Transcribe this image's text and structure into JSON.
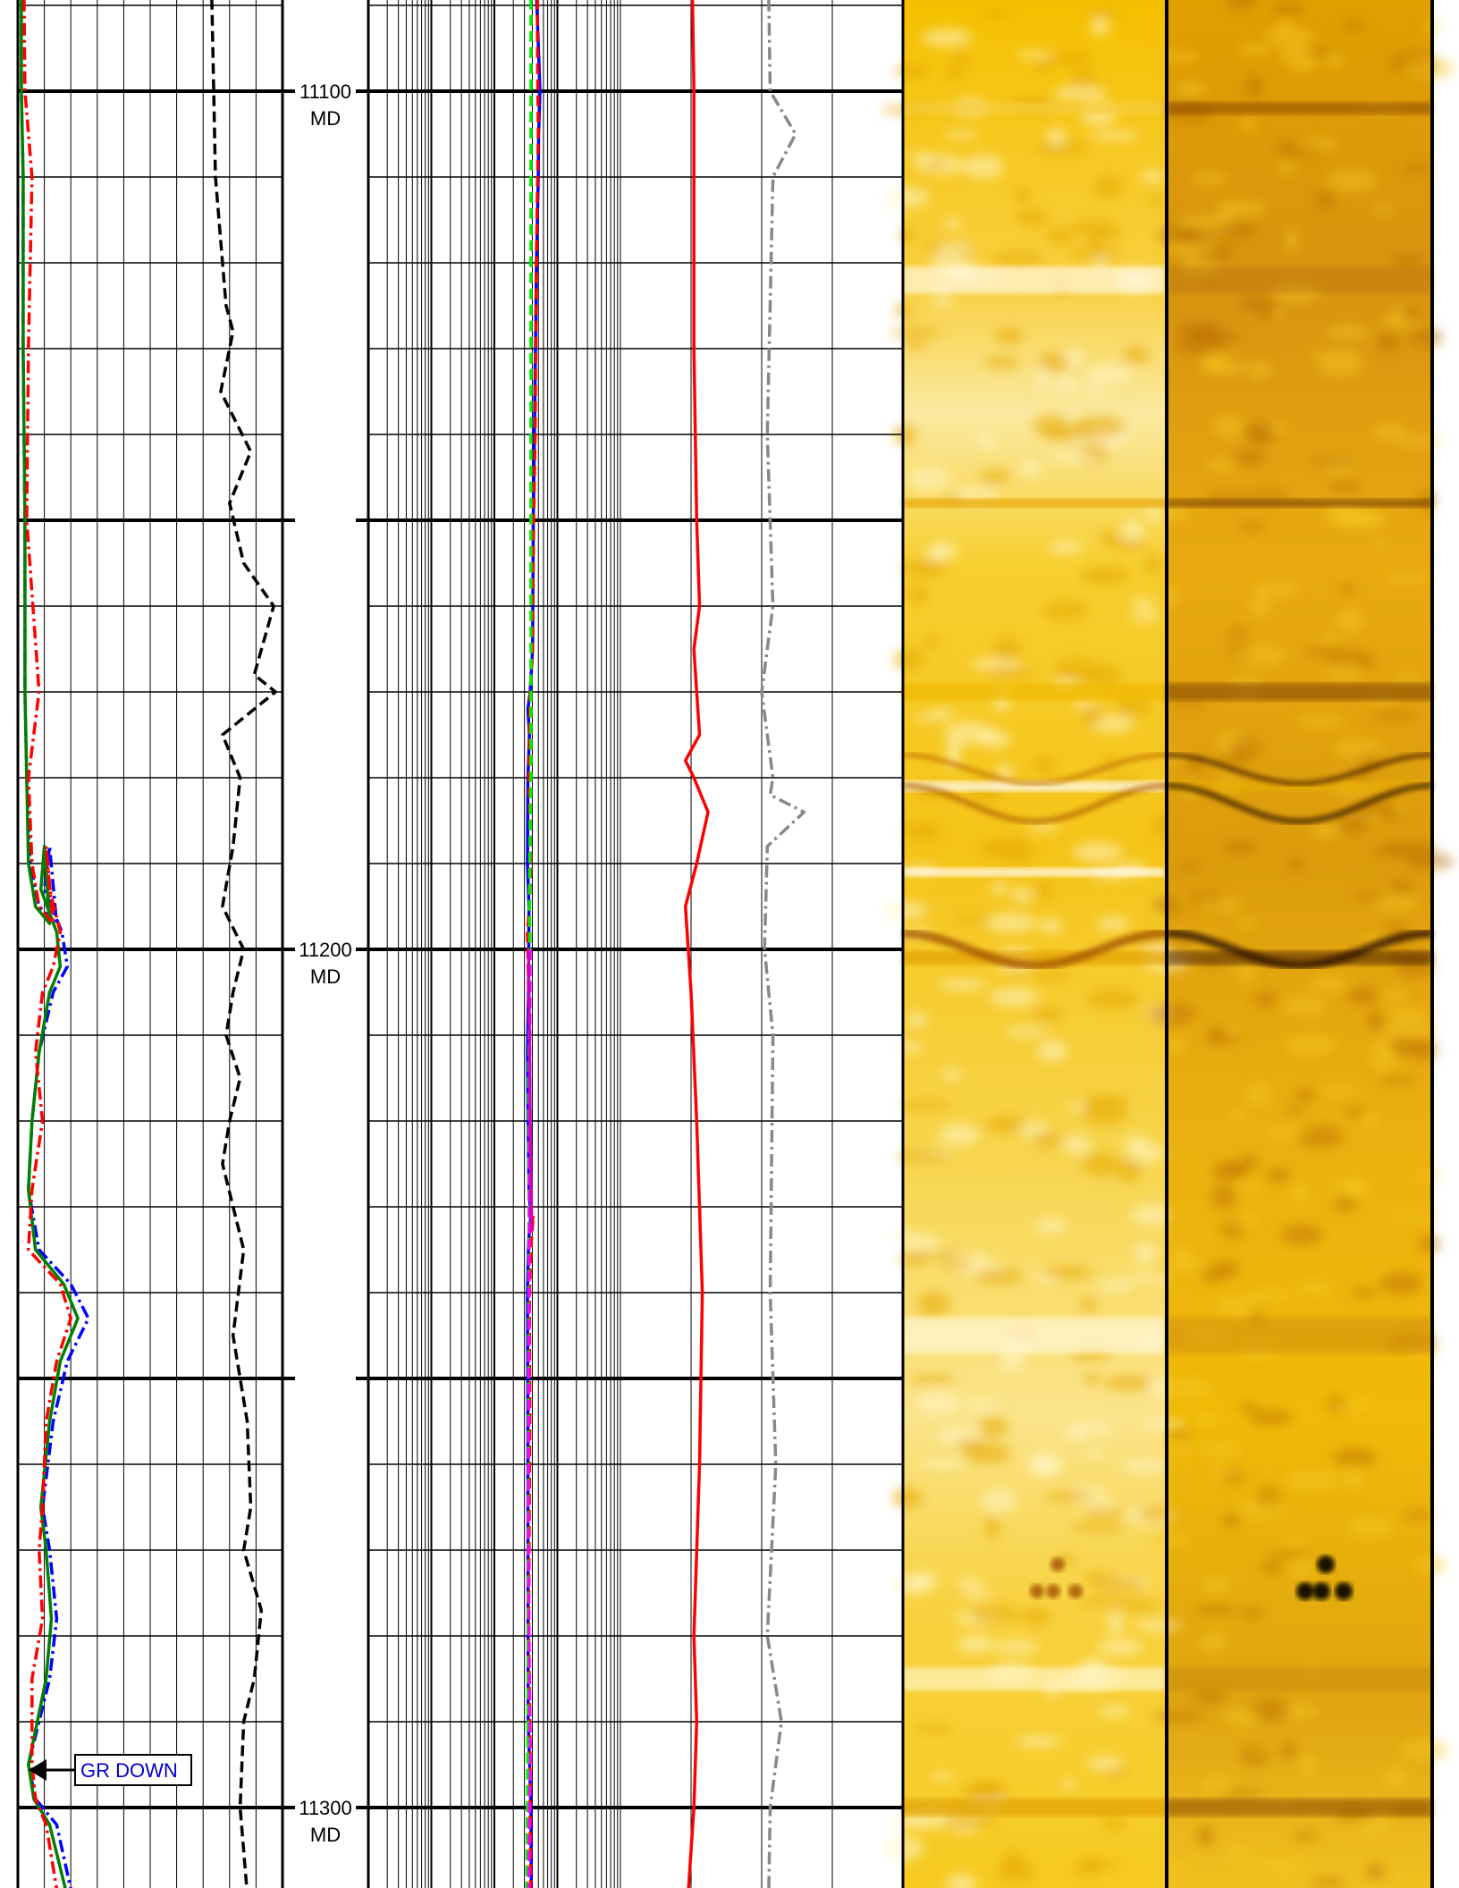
{
  "chart_data": {
    "type": "line",
    "title": "",
    "depth_axis": {
      "range_md": [
        11078,
        11320
      ],
      "ticks": [
        {
          "depth": 11100,
          "label": "11100",
          "unit_label": "MD"
        },
        {
          "depth": 11200,
          "label": "11200",
          "unit_label": "MD"
        },
        {
          "depth": 11300,
          "label": "11300",
          "unit_label": "MD"
        }
      ]
    },
    "track1": {
      "xlim": [
        0,
        150
      ],
      "series": [
        {
          "id": "gr-down",
          "color": "#0000ff",
          "style": "dashdot",
          "x": [
            2,
            2,
            3,
            3,
            4,
            4,
            5,
            7,
            12,
            22,
            18,
            15,
            25,
            28,
            20,
            12,
            8,
            6,
            12,
            30,
            40,
            28,
            20,
            14,
            18,
            22,
            18,
            6,
            10,
            22,
            38
          ],
          "depth": [
            11078,
            11100,
            11110,
            11130,
            11150,
            11170,
            11180,
            11190,
            11195,
            11197,
            11188,
            11193,
            11198,
            11202,
            11205,
            11212,
            11220,
            11228,
            11235,
            11239,
            11243,
            11248,
            11255,
            11265,
            11270,
            11278,
            11285,
            11295,
            11299,
            11302,
            11317
          ]
        },
        {
          "id": "gr-green",
          "color": "#008000",
          "style": "solid",
          "x": [
            2,
            2,
            3,
            3,
            4,
            4,
            5,
            6,
            10,
            18,
            15,
            13,
            22,
            24,
            18,
            12,
            8,
            6,
            10,
            26,
            34,
            24,
            18,
            13,
            16,
            19,
            16,
            6,
            9,
            18,
            36
          ],
          "depth": [
            11078,
            11100,
            11110,
            11130,
            11150,
            11170,
            11180,
            11190,
            11195,
            11197,
            11188,
            11193,
            11198,
            11202,
            11205,
            11212,
            11220,
            11228,
            11235,
            11239,
            11243,
            11248,
            11255,
            11265,
            11270,
            11278,
            11285,
            11295,
            11299,
            11302,
            11317
          ]
        },
        {
          "id": "gr-red",
          "color": "#ff0000",
          "style": "dashdot",
          "x": [
            3,
            4,
            8,
            6,
            5,
            12,
            6,
            8,
            12,
            20,
            16,
            18,
            24,
            20,
            14,
            10,
            14,
            8,
            6,
            24,
            30,
            22,
            16,
            14,
            12,
            14,
            8,
            8,
            10,
            16,
            28
          ],
          "depth": [
            11078,
            11100,
            11110,
            11130,
            11150,
            11170,
            11180,
            11190,
            11195,
            11197,
            11188,
            11193,
            11198,
            11202,
            11205,
            11212,
            11220,
            11228,
            11235,
            11239,
            11243,
            11248,
            11255,
            11265,
            11270,
            11278,
            11285,
            11295,
            11299,
            11302,
            11317
          ]
        },
        {
          "id": "aux-black",
          "color": "#000000",
          "style": "dashed",
          "x": [
            108,
            110,
            112,
            116,
            118,
            122,
            115,
            132,
            120,
            128,
            145,
            134,
            146,
            116,
            126,
            122,
            116,
            128,
            122,
            118,
            126,
            120,
            116,
            128,
            122,
            130,
            132,
            128,
            138,
            134,
            128,
            126,
            130,
            130
          ],
          "depth": [
            11078,
            11090,
            11110,
            11120,
            11125,
            11128,
            11135,
            11142,
            11148,
            11155,
            11160,
            11168,
            11170,
            11175,
            11180,
            11188,
            11195,
            11200,
            11205,
            11210,
            11215,
            11220,
            11225,
            11235,
            11245,
            11255,
            11265,
            11270,
            11277,
            11285,
            11290,
            11300,
            11310,
            11320
          ]
        }
      ]
    },
    "track2": {
      "scale": "log",
      "decades": 4,
      "series": [
        {
          "id": "res-blue",
          "color": "#0000ff",
          "style": "solid",
          "x": [
            0.86,
            0.868,
            0.885,
            0.893,
            0.886,
            0.884,
            0.875,
            0.864,
            0.858,
            0.856,
            0.855,
            0.842,
            0.83,
            0.838,
            0.83,
            0.828,
            0.836,
            0.833,
            0.828,
            0.831,
            0.836,
            0.845,
            0.834,
            0.828,
            0.83,
            0.831,
            0.832,
            0.846,
            0.85
          ],
          "depth": [
            11078,
            11085,
            11095,
            11100,
            11105,
            11110,
            11120,
            11140,
            11150,
            11160,
            11165,
            11170,
            11172,
            11175,
            11180,
            11190,
            11195,
            11205,
            11212,
            11220,
            11228,
            11231,
            11234,
            11240,
            11255,
            11280,
            11290,
            11300,
            11320
          ]
        },
        {
          "id": "res-red",
          "color": "#ff0000",
          "style": "dashed",
          "x": [
            0.878,
            0.88,
            0.884,
            0.874,
            0.868,
            0.86,
            0.856,
            0.855,
            0.842,
            0.835,
            0.846,
            0.838,
            0.828,
            0.834,
            0.839,
            0.845,
            0.85,
            0.858,
            0.848,
            0.838,
            0.84,
            0.834,
            0.84,
            0.842,
            0.848
          ],
          "depth": [
            11078,
            11095,
            11105,
            11120,
            11140,
            11150,
            11160,
            11165,
            11170,
            11180,
            11190,
            11195,
            11198,
            11205,
            11215,
            11225,
            11232,
            11231,
            11234,
            11240,
            11255,
            11280,
            11290,
            11300,
            11320
          ]
        },
        {
          "id": "res-green",
          "color": "#00ee00",
          "style": "dashed",
          "x": [
            0.846,
            0.846,
            0.846,
            0.846,
            0.846,
            0.846,
            0.846,
            0.84,
            0.838,
            0.842,
            0.834,
            0.836,
            0.834,
            0.832,
            0.83,
            0.826,
            0.822
          ],
          "depth": [
            11078,
            11100,
            11140,
            11150,
            11160,
            11170,
            11180,
            11190,
            11195,
            11200,
            11215,
            11230,
            11245,
            11270,
            11290,
            11305,
            11320
          ]
        },
        {
          "id": "res-magenta",
          "color": "#ff00ff",
          "style": "dashed",
          "x": [
            0.842,
            0.84,
            0.839,
            0.838,
            0.836,
            0.835,
            0.832,
            0.834,
            0.838,
            0.844,
            0.838,
            0.836,
            0.828
          ],
          "depth": [
            11200,
            11210,
            11220,
            11230,
            11240,
            11255,
            11265,
            11275,
            11285,
            11295,
            11300,
            11310,
            11320
          ]
        },
        {
          "id": "res-magenta-solid",
          "color": "#cc00cc",
          "style": "solid",
          "x": [
            0.833,
            0.836,
            0.838,
            0.84,
            0.842,
            0.844,
            0.846,
            0.848
          ],
          "depth": [
            11200,
            11205,
            11210,
            11215,
            11220,
            11225,
            11230,
            11233
          ]
        }
      ]
    },
    "track3": {
      "xlim": [
        0,
        10
      ],
      "series": [
        {
          "id": "cal-red",
          "color": "#ff0000",
          "style": "solid",
          "x": [
            2.5,
            2.6,
            2.6,
            2.7,
            2.8,
            2.6,
            2.7,
            2.8,
            2.3,
            2.6,
            3.1,
            2.7,
            2.3,
            2.5,
            2.7,
            2.9,
            2.8,
            2.6,
            2.7,
            2.6,
            2.4,
            2.4
          ],
          "depth": [
            11078,
            11100,
            11130,
            11150,
            11160,
            11165,
            11170,
            11175,
            11178,
            11180,
            11184,
            11190,
            11195,
            11205,
            11220,
            11240,
            11260,
            11280,
            11290,
            11300,
            11310,
            11320
          ]
        },
        {
          "id": "aux-gray",
          "color": "#888888",
          "style": "dashdot",
          "x": [
            5.2,
            5.3,
            6.2,
            5.4,
            5.2,
            5.4,
            5.0,
            5.4,
            5.3,
            6.5,
            5.2,
            5.1,
            5.4,
            5.3,
            5.5,
            5.2,
            5.7,
            5.3,
            5.2
          ],
          "depth": [
            11078,
            11100,
            11105,
            11110,
            11140,
            11160,
            11170,
            11180,
            11182,
            11184,
            11188,
            11200,
            11210,
            11240,
            11260,
            11280,
            11290,
            11300,
            11320
          ]
        }
      ]
    },
    "image_tracks": [
      {
        "id": "image-static",
        "colors": [
          "#f6c400",
          "#f9d84a",
          "#fff2b0",
          "#ffffff",
          "#d4920a",
          "#a85a08"
        ]
      },
      {
        "id": "image-dynamic",
        "colors": [
          "#e8a400",
          "#f4c200",
          "#c47d05",
          "#8a4a06",
          "#5a2a00",
          "#000000"
        ]
      }
    ],
    "annotations": [
      {
        "text": "GR DOWN",
        "color": "#0000cc",
        "depth": 11297,
        "points_to_x": 2
      }
    ]
  }
}
